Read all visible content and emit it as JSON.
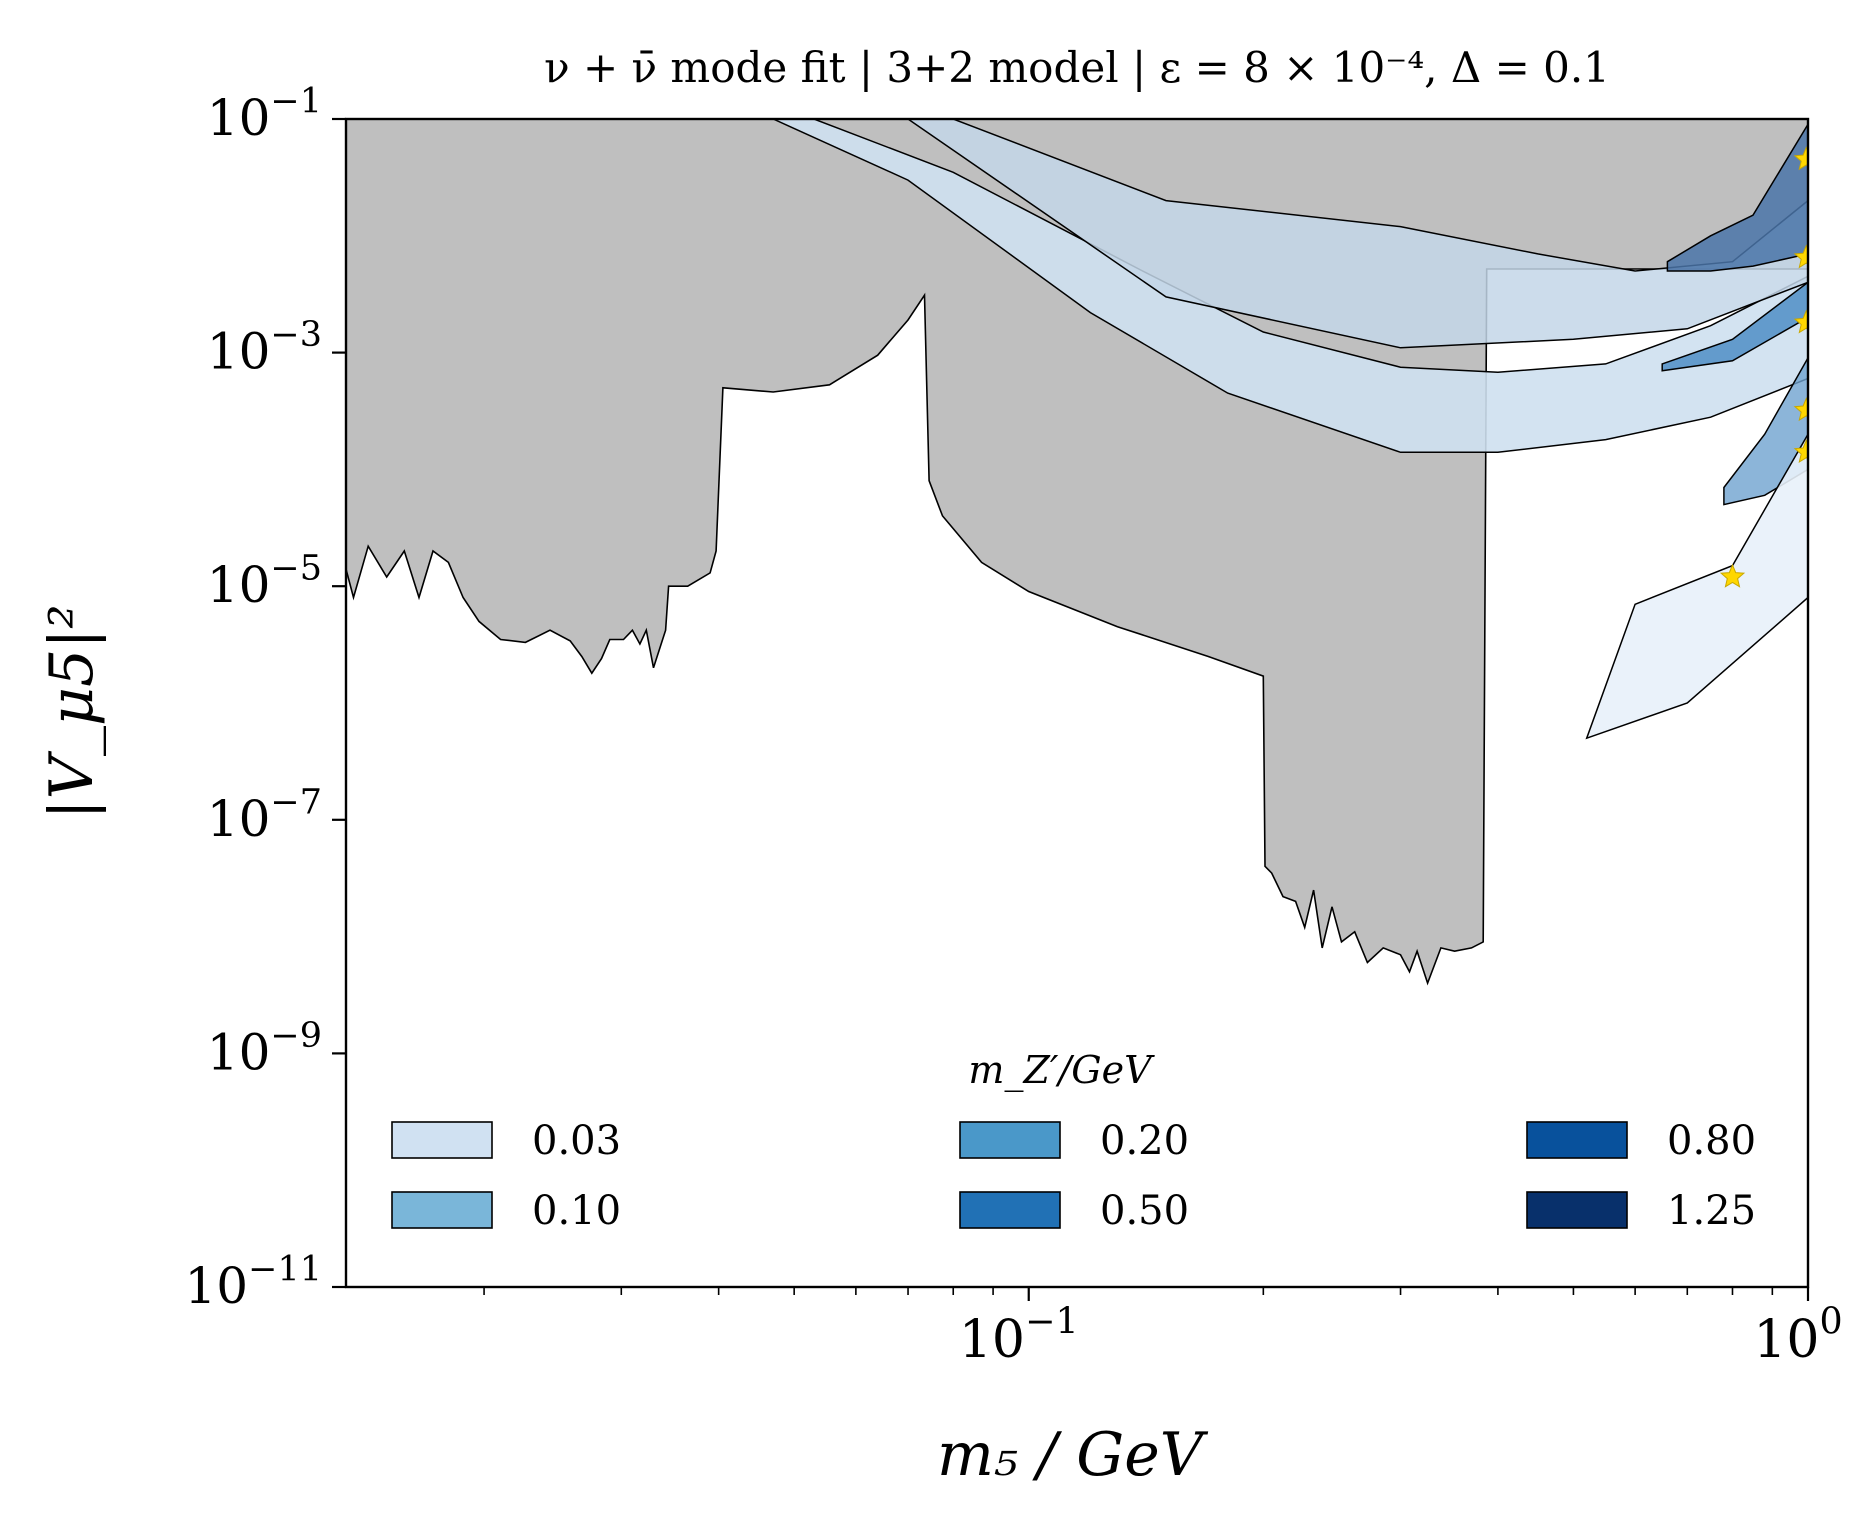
{
  "chart_data": {
    "type": "area",
    "title": "ν + ν̄ mode fit | 3+2 model | ε = 8 × 10⁻⁴, Δ = 0.1",
    "xlabel": "m₅ / GeV",
    "ylabel": "|V_μ5|²",
    "x_scale": "log",
    "y_scale": "log",
    "xlim": [
      0.0133,
      1.0
    ],
    "ylim": [
      1e-11,
      0.1
    ],
    "x_ticks": [
      {
        "value": 0.1,
        "label_base": "10",
        "label_exp": "−1"
      },
      {
        "value": 1.0,
        "label_base": "10",
        "label_exp": "0"
      }
    ],
    "y_ticks": [
      {
        "value": 1e-11,
        "label_base": "10",
        "label_exp": "−11"
      },
      {
        "value": 1e-09,
        "label_base": "10",
        "label_exp": "−9"
      },
      {
        "value": 1e-07,
        "label_base": "10",
        "label_exp": "−7"
      },
      {
        "value": 1e-05,
        "label_base": "10",
        "label_exp": "−5"
      },
      {
        "value": 0.001,
        "label_base": "10",
        "label_exp": "−3"
      },
      {
        "value": 0.1,
        "label_base": "10",
        "label_exp": "−1"
      }
    ],
    "grid": false,
    "legend": {
      "title": "m_Z′/GeV",
      "placement": "lower-center",
      "columns": 3,
      "entries": [
        {
          "label": "0.03",
          "color": "#d0e1f2"
        },
        {
          "label": "0.10",
          "color": "#7ab6d9"
        },
        {
          "label": "0.20",
          "color": "#4a98c9"
        },
        {
          "label": "0.50",
          "color": "#2171b5"
        },
        {
          "label": "0.80",
          "color": "#08519c"
        },
        {
          "label": "1.25",
          "color": "#08306b"
        }
      ]
    },
    "excluded_region": {
      "color": "#bfbfbf",
      "boundary": [
        [
          0.0133,
          1.4e-05
        ],
        [
          0.0136,
          8e-06
        ],
        [
          0.0142,
          2.2e-05
        ],
        [
          0.015,
          1.2e-05
        ],
        [
          0.0158,
          2e-05
        ],
        [
          0.0165,
          8e-06
        ],
        [
          0.0172,
          2e-05
        ],
        [
          0.018,
          1.6e-05
        ],
        [
          0.0188,
          8e-06
        ],
        [
          0.0197,
          5e-06
        ],
        [
          0.021,
          3.5e-06
        ],
        [
          0.0226,
          3.3e-06
        ],
        [
          0.0243,
          4.2e-06
        ],
        [
          0.0258,
          3.4e-06
        ],
        [
          0.0267,
          2.5e-06
        ],
        [
          0.0275,
          1.8e-06
        ],
        [
          0.0283,
          2.4e-06
        ],
        [
          0.029,
          3.5e-06
        ],
        [
          0.0302,
          3.5e-06
        ],
        [
          0.031,
          4.2e-06
        ],
        [
          0.0317,
          3.2e-06
        ],
        [
          0.0323,
          4.2e-06
        ],
        [
          0.033,
          2e-06
        ],
        [
          0.0342,
          4.2e-06
        ],
        [
          0.0345,
          1e-05
        ],
        [
          0.0365,
          1e-05
        ],
        [
          0.039,
          1.3e-05
        ],
        [
          0.0397,
          2e-05
        ],
        [
          0.0405,
          0.0005
        ],
        [
          0.047,
          0.00046
        ],
        [
          0.0555,
          0.00053
        ],
        [
          0.064,
          0.00095
        ],
        [
          0.07,
          0.0019
        ],
        [
          0.0735,
          0.0031
        ],
        [
          0.0745,
          8e-05
        ],
        [
          0.0775,
          4e-05
        ],
        [
          0.087,
          1.6e-05
        ],
        [
          0.1,
          9e-06
        ],
        [
          0.13,
          4.5e-06
        ],
        [
          0.17,
          2.5e-06
        ],
        [
          0.2,
          1.7e-06
        ],
        [
          0.201,
          4e-08
        ],
        [
          0.205,
          3.5e-08
        ],
        [
          0.212,
          2.2e-08
        ],
        [
          0.22,
          2e-08
        ],
        [
          0.226,
          1.2e-08
        ],
        [
          0.232,
          2.5e-08
        ],
        [
          0.238,
          8e-09
        ],
        [
          0.245,
          1.8e-08
        ],
        [
          0.252,
          9e-09
        ],
        [
          0.262,
          1.1e-08
        ],
        [
          0.272,
          6e-09
        ],
        [
          0.285,
          8e-09
        ],
        [
          0.3,
          7e-09
        ],
        [
          0.308,
          5e-09
        ],
        [
          0.315,
          7.5e-09
        ],
        [
          0.325,
          4e-09
        ],
        [
          0.338,
          8e-09
        ],
        [
          0.352,
          7.5e-09
        ],
        [
          0.37,
          8e-09
        ],
        [
          0.383,
          9e-09
        ],
        [
          0.387,
          0.0052
        ],
        [
          0.55,
          0.0052
        ],
        [
          1.0,
          0.0052
        ],
        [
          1.0,
          0.1
        ],
        [
          0.0133,
          0.1
        ]
      ]
    },
    "series": [
      {
        "name": "0.03",
        "color": "#cee0ef",
        "opacity": 0.9,
        "upper": [
          [
            0.053,
            0.1
          ],
          [
            0.08,
            0.035
          ],
          [
            0.14,
            0.005
          ],
          [
            0.2,
            0.0015
          ],
          [
            0.3,
            0.00075
          ],
          [
            0.4,
            0.00068
          ],
          [
            0.55,
            0.0008
          ],
          [
            0.75,
            0.0017
          ],
          [
            1.0,
            0.0045
          ]
        ],
        "lower": [
          [
            0.047,
            0.1
          ],
          [
            0.07,
            0.03
          ],
          [
            0.12,
            0.0022
          ],
          [
            0.18,
            0.00045
          ],
          [
            0.3,
            0.00014
          ],
          [
            0.4,
            0.00014
          ],
          [
            0.55,
            0.00018
          ],
          [
            0.75,
            0.00028
          ],
          [
            1.0,
            0.0006
          ]
        ]
      },
      {
        "name": "0.10",
        "color": "#c3d6e8",
        "opacity": 0.85,
        "upper": [
          [
            0.08,
            0.1
          ],
          [
            0.15,
            0.02
          ],
          [
            0.3,
            0.012
          ],
          [
            0.45,
            0.007
          ],
          [
            0.6,
            0.005
          ],
          [
            0.8,
            0.006
          ],
          [
            1.0,
            0.02
          ]
        ],
        "lower": [
          [
            0.07,
            0.1
          ],
          [
            0.15,
            0.003
          ],
          [
            0.3,
            0.0011
          ],
          [
            0.5,
            0.0013
          ],
          [
            0.7,
            0.0016
          ],
          [
            1.0,
            0.004
          ]
        ]
      },
      {
        "name": "0.50",
        "color": "#4a74a8",
        "opacity": 0.85,
        "upper": [
          [
            0.66,
            0.006
          ],
          [
            0.75,
            0.01
          ],
          [
            0.85,
            0.015
          ],
          [
            1.0,
            0.09
          ]
        ],
        "lower": [
          [
            0.66,
            0.005
          ],
          [
            0.75,
            0.005
          ],
          [
            0.85,
            0.0055
          ],
          [
            1.0,
            0.007
          ]
        ]
      },
      {
        "name": "0.20",
        "color": "#4f8ec5",
        "opacity": 0.85,
        "upper": [
          [
            0.65,
            0.0008
          ],
          [
            0.8,
            0.0013
          ],
          [
            1.0,
            0.004
          ]
        ],
        "lower": [
          [
            0.65,
            0.0007
          ],
          [
            0.8,
            0.00085
          ],
          [
            1.0,
            0.002
          ]
        ]
      },
      {
        "name": "0.80",
        "color": "#6fa3d0",
        "opacity": 0.8,
        "upper": [
          [
            0.78,
            7e-05
          ],
          [
            0.88,
            0.0002
          ],
          [
            1.0,
            0.0009
          ]
        ],
        "lower": [
          [
            0.78,
            5e-05
          ],
          [
            0.88,
            6e-05
          ],
          [
            1.0,
            0.0001
          ]
        ]
      },
      {
        "name": "1.25",
        "color": "#e8f1f9",
        "opacity": 0.9,
        "upper": [
          [
            0.6,
            7e-06
          ],
          [
            0.8,
            1.5e-05
          ],
          [
            1.0,
            0.0002
          ]
        ],
        "lower": [
          [
            0.52,
            5e-07
          ],
          [
            0.7,
            1e-06
          ],
          [
            1.0,
            8e-06
          ]
        ]
      }
    ],
    "best_fit_points": [
      {
        "x": 0.8,
        "y": 1.2e-05
      },
      {
        "x": 0.995,
        "y": 0.045
      },
      {
        "x": 0.995,
        "y": 0.0065
      },
      {
        "x": 0.995,
        "y": 0.0018
      },
      {
        "x": 0.995,
        "y": 0.00032
      },
      {
        "x": 0.995,
        "y": 0.00014
      }
    ]
  }
}
